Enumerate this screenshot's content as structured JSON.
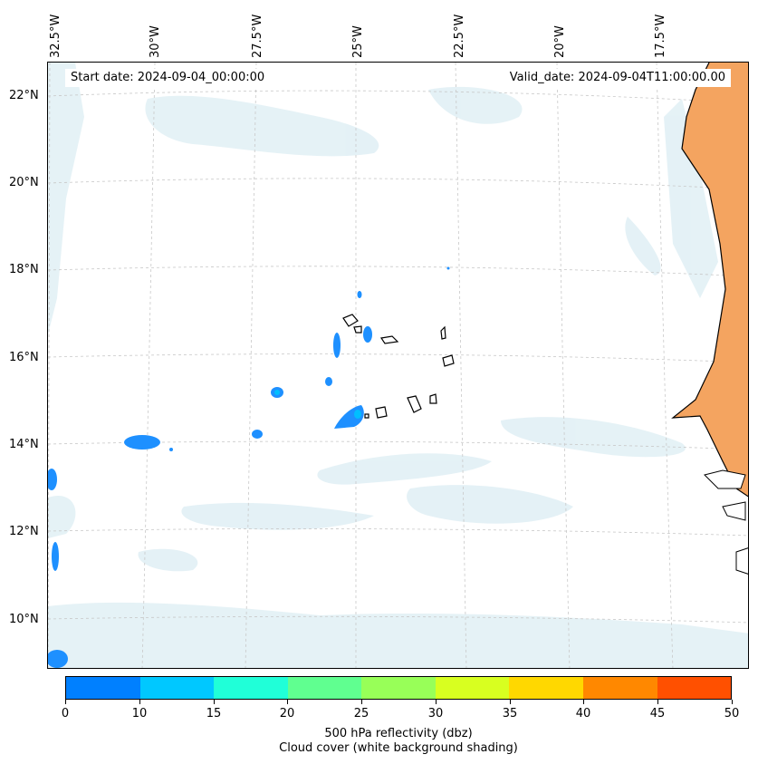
{
  "map": {
    "lon_labels": [
      "32.5°W",
      "30°W",
      "27.5°W",
      "25°W",
      "22.5°W",
      "20°W",
      "17.5°W"
    ],
    "lat_labels": [
      "22°N",
      "20°N",
      "18°N",
      "16°N",
      "14°N",
      "12°N",
      "10°N"
    ],
    "start_date": "Start date: 2024-09-04_00:00:00",
    "valid_date": "Valid_date: 2024-09-04T11:00:00.00"
  },
  "colorbar": {
    "ticks": [
      "0",
      "10",
      "15",
      "20",
      "25",
      "30",
      "35",
      "40",
      "45",
      "50"
    ],
    "colors": [
      "#0080ff",
      "#00c8ff",
      "#20ffd8",
      "#60ff90",
      "#98ff58",
      "#d8ff20",
      "#ffd800",
      "#ff8800",
      "#ff5000"
    ],
    "label": "500 hPa reflectivity (dbz)",
    "sublabel": "Cloud cover (white background shading)"
  },
  "colors": {
    "land_fill": "#f4a460",
    "cloud_shading": "#cfe7ef",
    "reflectivity_low": "#1e90ff",
    "reflectivity_mid": "#00bfff",
    "coastline": "#000000",
    "gridline": "#c8c8c8"
  }
}
